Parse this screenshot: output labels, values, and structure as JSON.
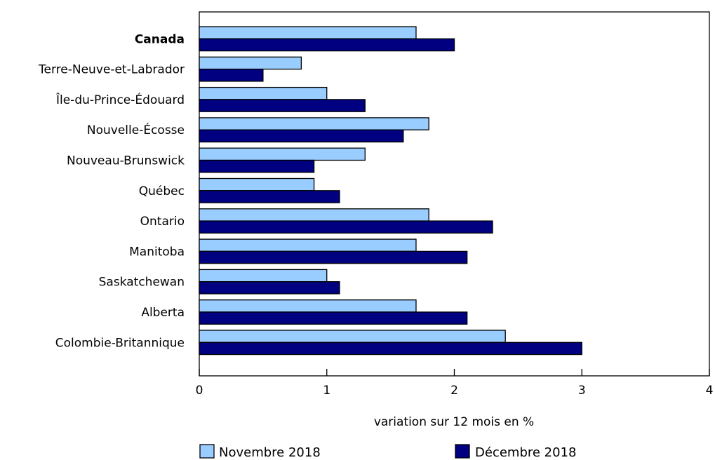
{
  "chart_data": {
    "type": "bar",
    "orientation": "horizontal",
    "categories": [
      "Canada",
      "Terre-Neuve-et-Labrador",
      "Île-du-Prince-Édouard",
      "Nouvelle-Écosse",
      "Nouveau-Brunswick",
      "Québec",
      "Ontario",
      "Manitoba",
      "Saskatchewan",
      "Alberta",
      "Colombie-Britannique"
    ],
    "emphasized_category": "Canada",
    "series": [
      {
        "name": "Novembre 2018",
        "color": "#99ccff",
        "values": [
          1.7,
          0.8,
          1.0,
          1.8,
          1.3,
          0.9,
          1.8,
          1.7,
          1.0,
          1.7,
          2.4
        ]
      },
      {
        "name": "Décembre 2018",
        "color": "#000080",
        "values": [
          2.0,
          0.5,
          1.3,
          1.6,
          0.9,
          1.1,
          2.3,
          2.1,
          1.1,
          2.1,
          3.0
        ]
      }
    ],
    "xlabel": "variation sur 12 mois en %",
    "xlim": [
      0,
      4
    ],
    "xticks": [
      0,
      1,
      2,
      3,
      4
    ],
    "grid": false,
    "legend_position": "bottom"
  }
}
